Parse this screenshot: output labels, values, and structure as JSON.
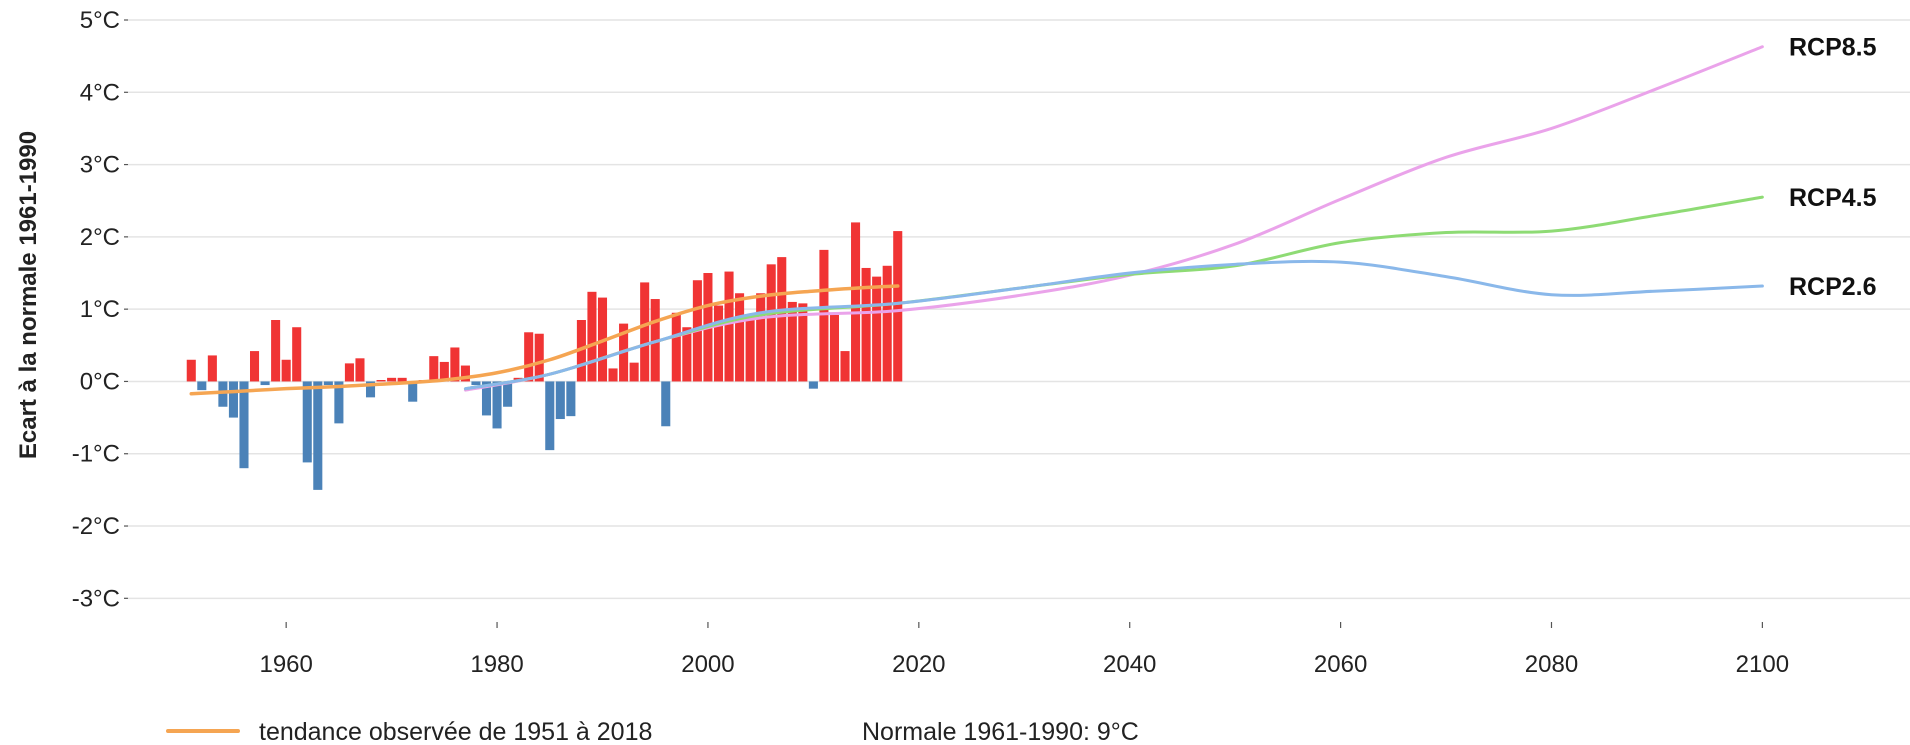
{
  "chart_data": {
    "type": "bar",
    "ylabel": "Ecart à la normale 1961-1990",
    "ylim": [
      -3.3,
      5
    ],
    "y_ticks": [
      {
        "value": 5,
        "label": "5°C"
      },
      {
        "value": 4,
        "label": "4°C"
      },
      {
        "value": 3,
        "label": "3°C"
      },
      {
        "value": 2,
        "label": "2°C"
      },
      {
        "value": 1,
        "label": "1°C"
      },
      {
        "value": 0,
        "label": "0°C"
      },
      {
        "value": -1,
        "label": "-1°C"
      },
      {
        "value": -2,
        "label": "-2°C"
      },
      {
        "value": -3,
        "label": "-3°C"
      }
    ],
    "xlim": [
      1945,
      2114
    ],
    "x_ticks": [
      1960,
      1980,
      2000,
      2020,
      2040,
      2060,
      2080,
      2100
    ],
    "grid": true,
    "colors": {
      "positive_bar": "#f03434",
      "negative_bar": "#4b82b8",
      "trend": "#f5a552",
      "rcp85": "#eaa3ea",
      "rcp45": "#8edb74",
      "rcp26": "#8ab8ea",
      "grid": "#e4e4e4"
    },
    "anomalies": {
      "years": [
        1951,
        1952,
        1953,
        1954,
        1955,
        1956,
        1957,
        1958,
        1959,
        1960,
        1961,
        1962,
        1963,
        1964,
        1965,
        1966,
        1967,
        1968,
        1969,
        1970,
        1971,
        1972,
        1973,
        1974,
        1975,
        1976,
        1977,
        1978,
        1979,
        1980,
        1981,
        1982,
        1983,
        1984,
        1985,
        1986,
        1987,
        1988,
        1989,
        1990,
        1991,
        1992,
        1993,
        1994,
        1995,
        1996,
        1997,
        1998,
        1999,
        2000,
        2001,
        2002,
        2003,
        2004,
        2005,
        2006,
        2007,
        2008,
        2009,
        2010,
        2011,
        2012,
        2013,
        2014,
        2015,
        2016,
        2017,
        2018
      ],
      "values": [
        0.3,
        -0.12,
        0.36,
        -0.35,
        -0.5,
        -1.2,
        0.42,
        -0.05,
        0.85,
        0.3,
        0.75,
        -1.12,
        -1.5,
        -0.05,
        -0.58,
        0.25,
        0.32,
        -0.22,
        0.02,
        0.05,
        0.05,
        -0.28,
        0.02,
        0.35,
        0.27,
        0.47,
        0.22,
        -0.05,
        -0.47,
        -0.65,
        -0.35,
        0.05,
        0.68,
        0.66,
        -0.95,
        -0.52,
        -0.48,
        0.85,
        1.24,
        1.16,
        0.18,
        0.8,
        0.26,
        1.37,
        1.14,
        -0.62,
        0.95,
        0.75,
        1.4,
        1.5,
        1.05,
        1.52,
        1.22,
        0.93,
        1.22,
        1.62,
        1.72,
        1.1,
        1.08,
        -0.1,
        1.82,
        0.92,
        0.42,
        2.2,
        1.57,
        1.45,
        1.6,
        2.08
      ]
    },
    "series": [
      {
        "name": "tendance observée de 1951 à 2018",
        "x": [
          1951,
          1955,
          1960,
          1965,
          1970,
          1975,
          1980,
          1985,
          1990,
          1995,
          2000,
          2005,
          2010,
          2015,
          2018
        ],
        "y": [
          -0.17,
          -0.14,
          -0.1,
          -0.07,
          -0.03,
          0.02,
          0.12,
          0.3,
          0.56,
          0.83,
          1.05,
          1.18,
          1.25,
          1.3,
          1.32
        ]
      },
      {
        "name": "RCP8.5",
        "x": [
          1977,
          1985,
          1995,
          2005,
          2018,
          2030,
          2040,
          2050,
          2060,
          2070,
          2080,
          2090,
          2100
        ],
        "y": [
          -0.12,
          0.1,
          0.55,
          0.88,
          0.98,
          1.2,
          1.47,
          1.9,
          2.52,
          3.1,
          3.5,
          4.05,
          4.63
        ]
      },
      {
        "name": "RCP4.5",
        "x": [
          1977,
          1985,
          1995,
          2005,
          2018,
          2030,
          2040,
          2050,
          2060,
          2070,
          2080,
          2090,
          2100
        ],
        "y": [
          -0.1,
          0.1,
          0.55,
          0.92,
          1.08,
          1.3,
          1.48,
          1.6,
          1.92,
          2.06,
          2.08,
          2.3,
          2.55
        ]
      },
      {
        "name": "RCP2.6",
        "x": [
          1977,
          1985,
          1995,
          2005,
          2018,
          2030,
          2040,
          2050,
          2060,
          2070,
          2080,
          2090,
          2100
        ],
        "y": [
          -0.1,
          0.1,
          0.55,
          0.95,
          1.08,
          1.3,
          1.5,
          1.62,
          1.65,
          1.45,
          1.2,
          1.25,
          1.32
        ]
      }
    ],
    "series_labels": [
      {
        "text": "RCP8.5",
        "y": 4.63
      },
      {
        "text": "RCP4.5",
        "y": 2.55
      },
      {
        "text": "RCP2.6",
        "y": 1.32
      }
    ],
    "legend": {
      "trend_label": "tendance observée de 1951 à 2018",
      "normal_note": "Normale 1961-1990: 9°C"
    }
  }
}
